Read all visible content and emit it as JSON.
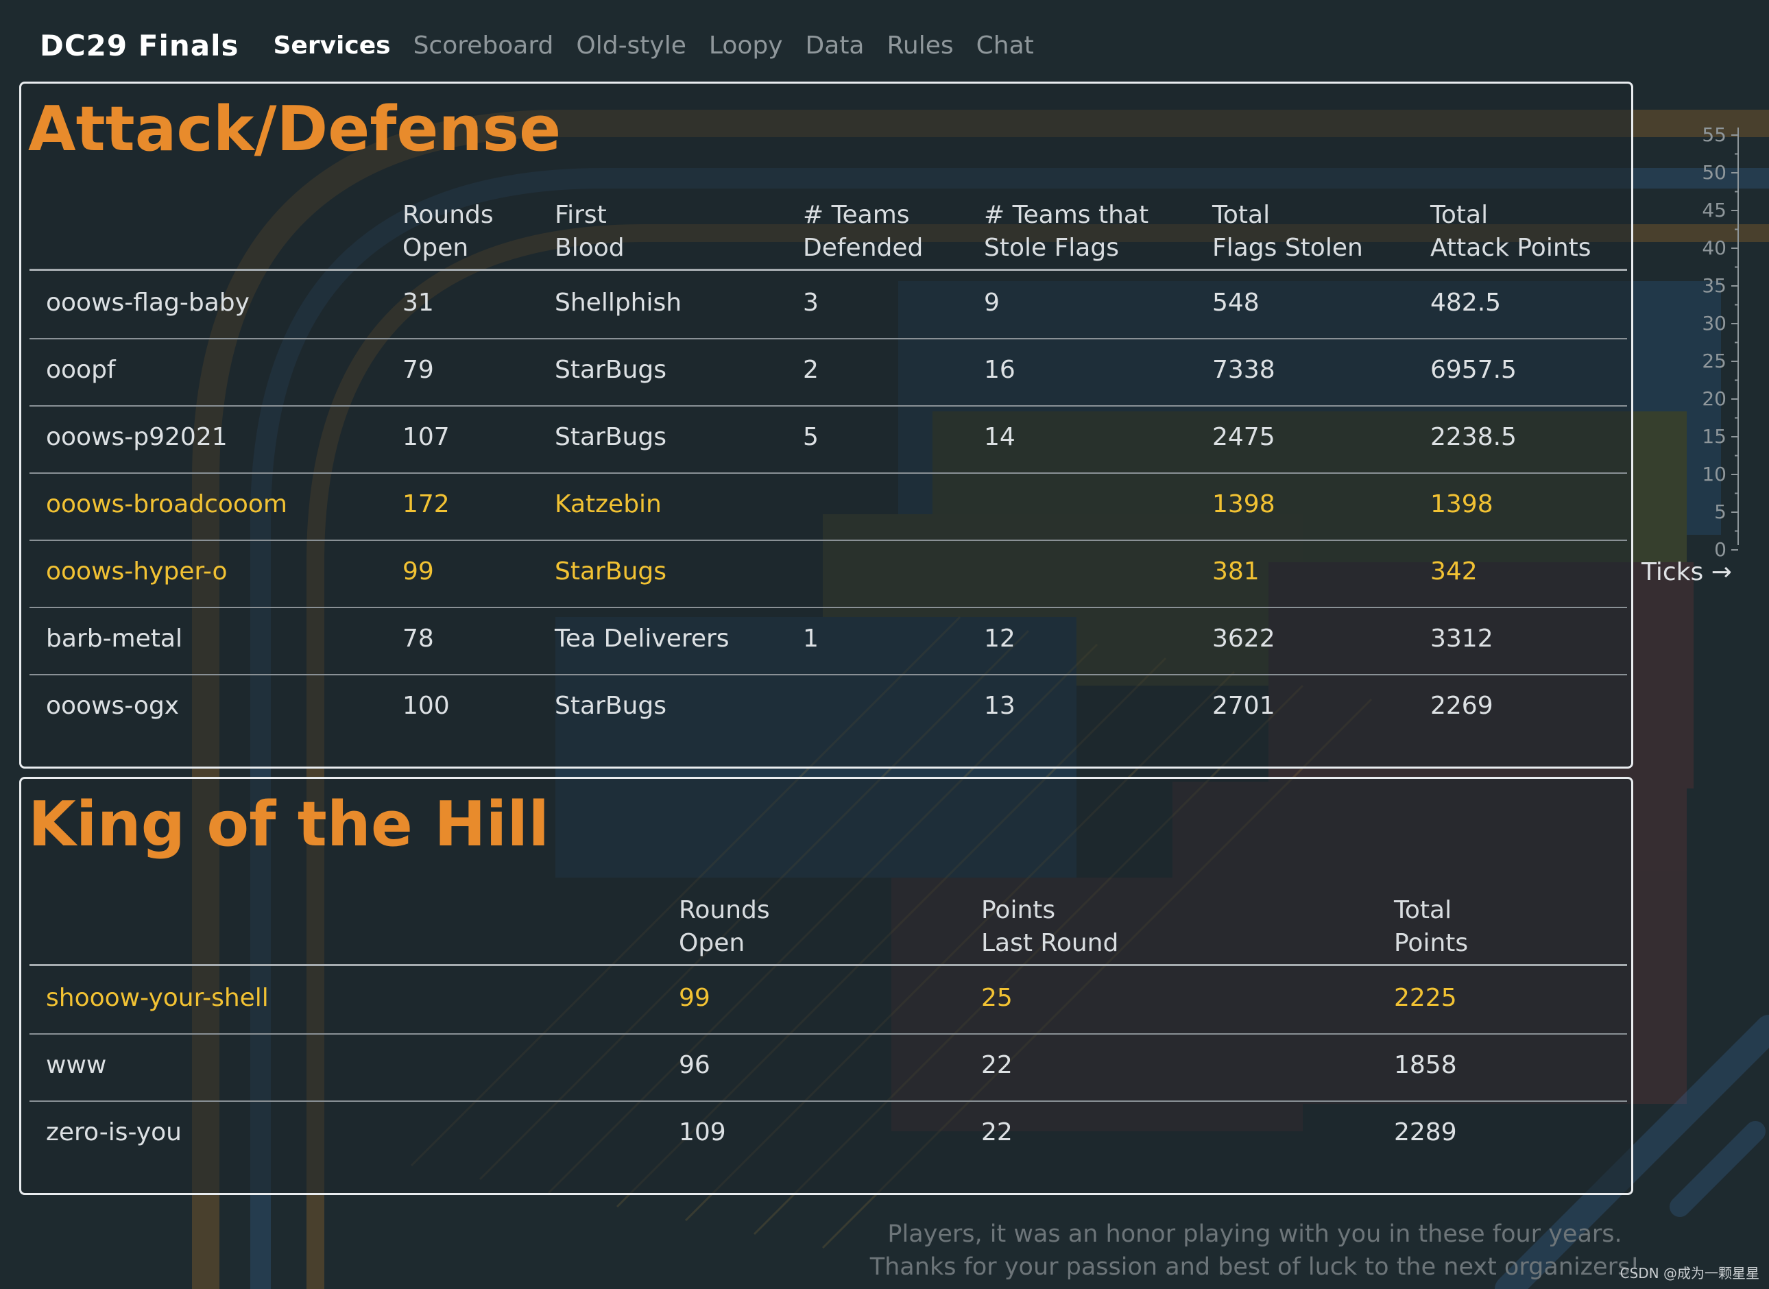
{
  "nav": {
    "brand": "DC29 Finals",
    "links": [
      "Services",
      "Scoreboard",
      "Old-style",
      "Loopy",
      "Data",
      "Rules",
      "Chat"
    ]
  },
  "attack_defense": {
    "title": "Attack/Defense",
    "headers": [
      "Rounds\nOpen",
      "First\nBlood",
      "# Teams\nDefended",
      "# Teams that\nStole Flags",
      "Total\nFlags Stolen",
      "Total\nAttack Points"
    ],
    "rows": [
      {
        "name": "ooows-flag-baby",
        "rounds": "31",
        "blood": "Shellphish",
        "defended": "3",
        "stole": "9",
        "flags": "548",
        "points": "482.5",
        "highlight": false
      },
      {
        "name": "ooopf",
        "rounds": "79",
        "blood": "StarBugs",
        "defended": "2",
        "stole": "16",
        "flags": "7338",
        "points": "6957.5",
        "highlight": false
      },
      {
        "name": "ooows-p92021",
        "rounds": "107",
        "blood": "StarBugs",
        "defended": "5",
        "stole": "14",
        "flags": "2475",
        "points": "2238.5",
        "highlight": false
      },
      {
        "name": "ooows-broadcooom",
        "rounds": "172",
        "blood": "Katzebin",
        "defended": "",
        "stole": "",
        "flags": "1398",
        "points": "1398",
        "highlight": true
      },
      {
        "name": "ooows-hyper-o",
        "rounds": "99",
        "blood": "StarBugs",
        "defended": "",
        "stole": "",
        "flags": "381",
        "points": "342",
        "highlight": true
      },
      {
        "name": "barb-metal",
        "rounds": "78",
        "blood": "Tea Deliverers",
        "defended": "1",
        "stole": "12",
        "flags": "3622",
        "points": "3312",
        "highlight": false
      },
      {
        "name": "ooows-ogx",
        "rounds": "100",
        "blood": "StarBugs",
        "defended": "",
        "stole": "13",
        "flags": "2701",
        "points": "2269",
        "highlight": false
      }
    ]
  },
  "koth": {
    "title": "King of the Hill",
    "headers": [
      "Rounds\nOpen",
      "Points\nLast Round",
      "Total\nPoints"
    ],
    "rows": [
      {
        "name": "shooow-your-shell",
        "rounds": "99",
        "last": "25",
        "total": "2225",
        "highlight": true
      },
      {
        "name": "www",
        "rounds": "96",
        "last": "22",
        "total": "1858",
        "highlight": false
      },
      {
        "name": "zero-is-you",
        "rounds": "109",
        "last": "22",
        "total": "2289",
        "highlight": false
      }
    ]
  },
  "axis": {
    "ticks": [
      "55",
      "50",
      "45",
      "40",
      "35",
      "30",
      "25",
      "20",
      "15",
      "10",
      "5",
      "0"
    ],
    "label": "Ticks →"
  },
  "footer": {
    "line1": "Players, it was an honor playing with you in these four years.",
    "line2": "Thanks for your passion and best of luck to the next organizers!"
  },
  "watermark": "CSDN @成为一颗星星",
  "colors": {
    "accent": "#e88b2c",
    "highlight": "#f2c233",
    "background": "#1e2a2f"
  }
}
